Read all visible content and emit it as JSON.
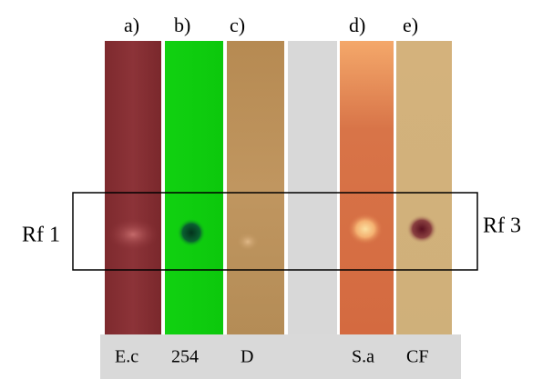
{
  "panels": [
    {
      "letter": "a)",
      "label": "E.c"
    },
    {
      "letter": "b)",
      "label": "254"
    },
    {
      "letter": "c)",
      "label": "D"
    },
    {
      "letter": "d)",
      "label": "S.a"
    },
    {
      "letter": "e)",
      "label": "CF"
    }
  ],
  "rf_left": "Rf 1",
  "rf_right": "Rf 3"
}
